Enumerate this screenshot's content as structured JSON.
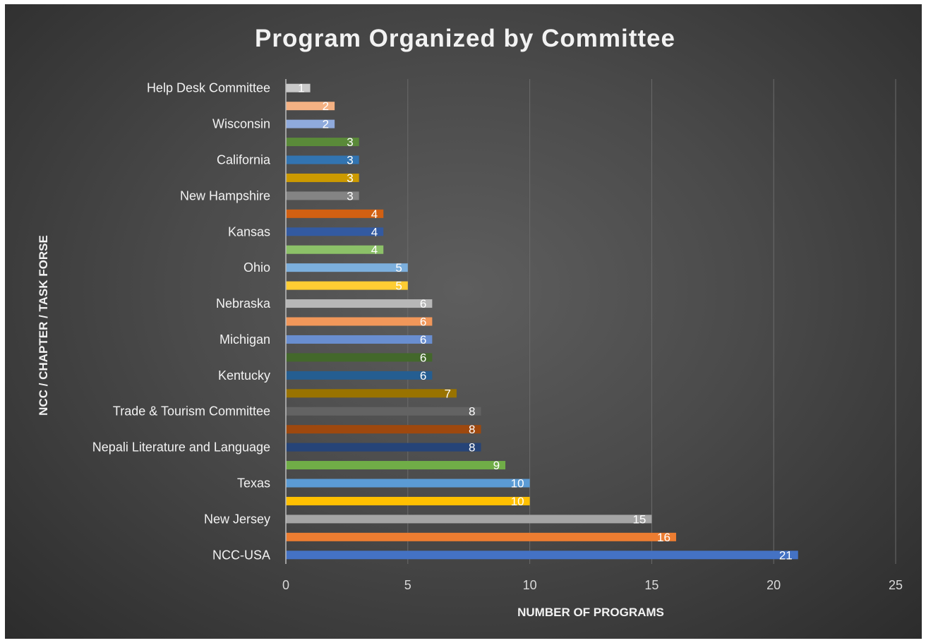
{
  "chart_data": {
    "type": "bar",
    "orientation": "horizontal",
    "title": "Program Organized by Committee",
    "xlabel": "NUMBER OF PROGRAMS",
    "ylabel": "NCC / CHAPTER / TASK FORSE",
    "xlim": [
      0,
      25
    ],
    "xticks": [
      "0",
      "5",
      "10",
      "15",
      "20",
      "25"
    ],
    "grid": true,
    "categories": [
      "NCC-USA",
      "",
      "New Jersey",
      "",
      "Texas",
      "",
      "Nepali Literature and Language",
      "",
      "Trade & Tourism Committee",
      "",
      "Kentucky",
      "",
      "Michigan",
      "",
      "Nebraska",
      "",
      "Ohio",
      "",
      "Kansas",
      "",
      "New Hampshire",
      "",
      "California",
      "",
      "Wisconsin",
      "",
      "Help Desk Committee"
    ],
    "values": [
      21,
      16,
      15,
      10,
      10,
      9,
      8,
      8,
      8,
      7,
      6,
      6,
      6,
      6,
      6,
      5,
      5,
      4,
      4,
      4,
      3,
      3,
      3,
      3,
      2,
      2,
      1
    ],
    "colors": [
      "#4472c4",
      "#ed7d31",
      "#a5a5a5",
      "#ffc000",
      "#5b9bd5",
      "#70ad47",
      "#264478",
      "#9e480e",
      "#636363",
      "#997300",
      "#255e91",
      "#43682b",
      "#698ed0",
      "#f1975a",
      "#b7b7b7",
      "#ffcd33",
      "#7cafdd",
      "#8cc168",
      "#335aa1",
      "#d26012",
      "#848484",
      "#cc9a00",
      "#3274b1",
      "#5a8a39",
      "#8faadc",
      "#f4b183",
      "#c9c9c9"
    ]
  }
}
